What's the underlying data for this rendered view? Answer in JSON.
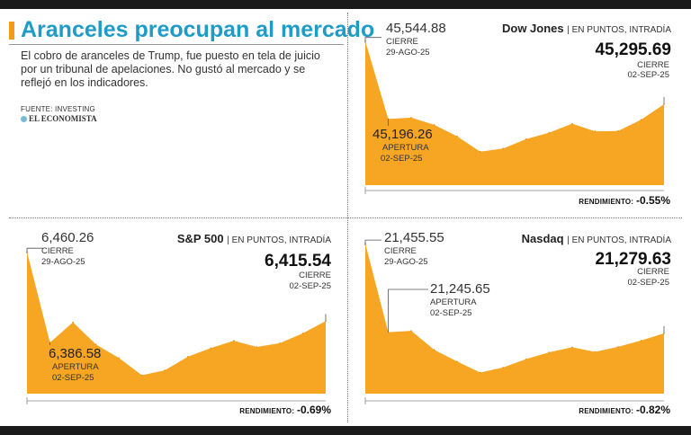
{
  "header": {
    "title": "Aranceles preocupan al mercado",
    "description": "El cobro de aranceles de Trump, fue puesto en tela de juicio por un tribunal de apelaciones. No gustó al mercado y se reflejó en los indicadores.",
    "source": "FUENTE: INVESTING",
    "brand": "EL ECONOMISTA"
  },
  "colors": {
    "accent": "#f39a1b",
    "title": "#1f9bc8",
    "fill": "#f7a623",
    "frame": "#1a1a1a"
  },
  "common": {
    "unit": "| EN PUNTOS, INTRADÍA",
    "cierre_label": "CIERRE",
    "apertura_label": "APERTURA",
    "prev_date": "29-AGO-25",
    "date": "02-SEP-25",
    "perf_label": "RENDIMIENTO:"
  },
  "chart_data": [
    {
      "type": "area",
      "title": "Dow Jones",
      "subtitle": "EN PUNTOS, INTRADÍA",
      "prev_close": {
        "value": "45,544.88",
        "label": "CIERRE",
        "date": "29-AGO-25"
      },
      "open": {
        "value": "45,196.26",
        "label": "APERTURA",
        "date": "02-SEP-25"
      },
      "close": {
        "value": "45,295.69",
        "label": "CIERRE",
        "date": "02-SEP-25"
      },
      "performance": "-0.55%",
      "ylim": [
        44900,
        45600
      ],
      "values": [
        45544.88,
        45196.26,
        45202,
        45170,
        45118,
        45050,
        45064,
        45106,
        45135,
        45175,
        45141,
        45142,
        45193,
        45262
      ]
    },
    {
      "type": "area",
      "title": "S&P 500",
      "subtitle": "EN PUNTOS, INTRADÍA",
      "prev_close": {
        "value": "6,460.26",
        "label": "CIERRE",
        "date": "29-AGO-25"
      },
      "open": {
        "value": "6,386.58",
        "label": "APERTURA",
        "date": "02-SEP-25"
      },
      "close": {
        "value": "6,415.54",
        "label": "CIERRE",
        "date": "02-SEP-25"
      },
      "performance": "-0.69%",
      "ylim": [
        6345,
        6475
      ],
      "values": [
        6460.26,
        6386.58,
        6403,
        6385,
        6374,
        6360,
        6364,
        6375,
        6382,
        6388,
        6383,
        6386,
        6394,
        6404
      ]
    },
    {
      "type": "area",
      "title": "Nasdaq",
      "subtitle": "EN PUNTOS, INTRADÍA",
      "prev_close": {
        "value": "21,455.55",
        "label": "CIERRE",
        "date": "29-AGO-25"
      },
      "open": {
        "value": "21,245.65",
        "label": "APERTURA",
        "date": "02-SEP-25"
      },
      "close": {
        "value": "21,279.63",
        "label": "CIERRE",
        "date": "02-SEP-25"
      },
      "performance": "-0.82%",
      "ylim": [
        21100,
        21475
      ],
      "values": [
        21455.55,
        21245.65,
        21249,
        21204,
        21176,
        21150,
        21162,
        21182,
        21198,
        21210,
        21199,
        21211,
        21226,
        21243
      ]
    }
  ]
}
